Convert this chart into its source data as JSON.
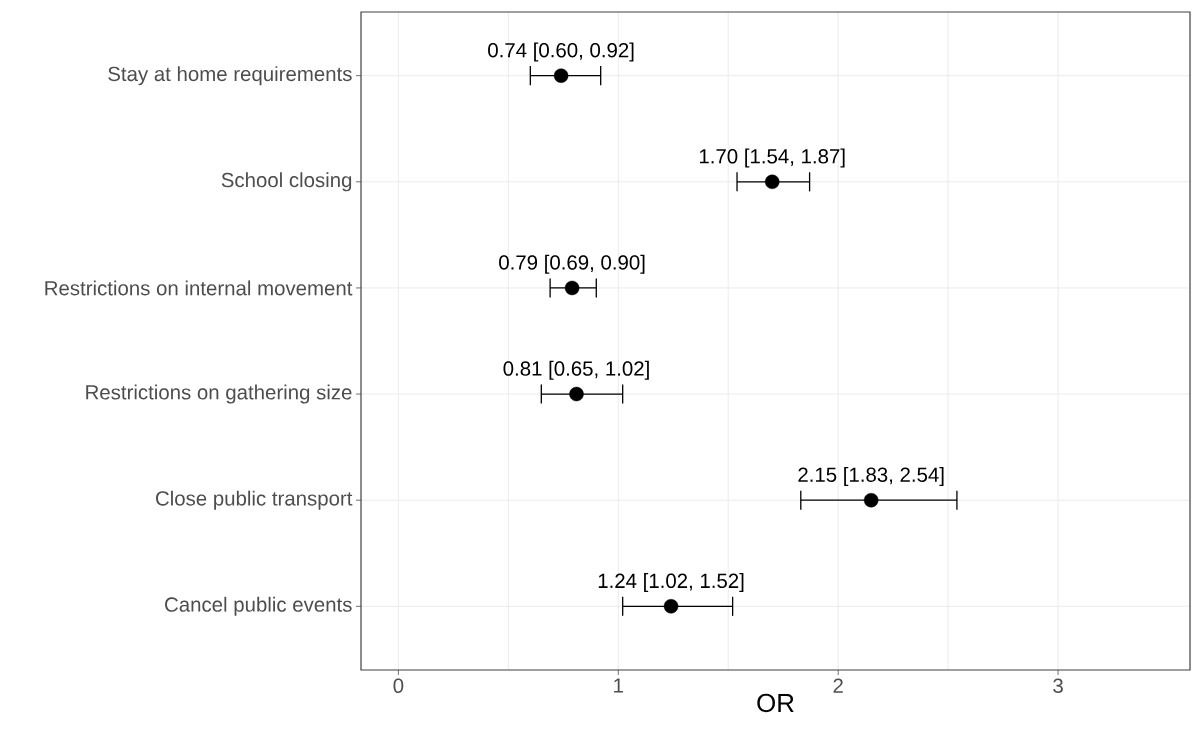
{
  "chart_data": {
    "type": "scatter",
    "orientation": "horizontal",
    "xlabel": "OR",
    "categories": [
      "Stay at home requirements",
      "School closing",
      "Restrictions on internal movement",
      "Restrictions on gathering size",
      "Close public transport",
      "Cancel public events"
    ],
    "values": [
      0.74,
      1.7,
      0.79,
      0.81,
      2.15,
      1.24
    ],
    "errors": [
      [
        0.6,
        0.92
      ],
      [
        1.54,
        1.87
      ],
      [
        0.69,
        0.9
      ],
      [
        0.65,
        1.02
      ],
      [
        1.83,
        2.54
      ],
      [
        1.02,
        1.52
      ]
    ],
    "value_labels": [
      "0.74 [0.60, 0.92]",
      "1.70 [1.54, 1.87]",
      "0.79 [0.69, 0.90]",
      "0.81 [0.65, 1.02]",
      "2.15 [1.83, 2.54]",
      "1.24 [1.02, 1.52]"
    ],
    "color": "#000000",
    "marker": "circle",
    "xlim": [
      -0.17,
      3.6
    ],
    "xticks": [
      0,
      1,
      2,
      3
    ],
    "grid": true
  }
}
